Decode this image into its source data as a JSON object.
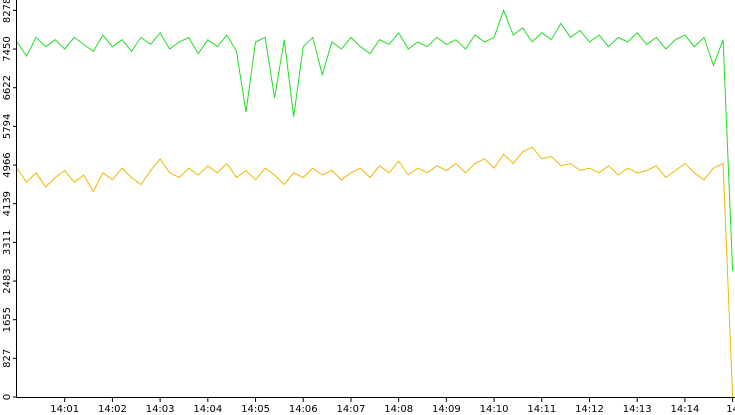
{
  "chart_data": {
    "type": "line",
    "x": [
      0,
      0.2,
      0.4,
      0.6,
      0.8,
      1,
      1.2,
      1.4,
      1.6,
      1.8,
      2,
      2.2,
      2.4,
      2.6,
      2.8,
      3,
      3.2,
      3.4,
      3.6,
      3.8,
      4,
      4.2,
      4.4,
      4.6,
      4.8,
      5,
      5.2,
      5.4,
      5.6,
      5.8,
      6,
      6.2,
      6.4,
      6.6,
      6.8,
      7,
      7.2,
      7.4,
      7.6,
      7.8,
      8,
      8.2,
      8.4,
      8.6,
      8.8,
      9,
      9.2,
      9.4,
      9.6,
      9.8,
      10,
      10.2,
      10.4,
      10.6,
      10.8,
      11,
      11.2,
      11.4,
      11.6,
      11.8,
      12,
      12.2,
      12.4,
      12.6,
      12.8,
      13,
      13.2,
      13.4,
      13.6,
      13.8,
      14,
      14.2,
      14.4,
      14.6,
      14.8,
      15
    ],
    "series": [
      {
        "color": "#22dd22",
        "values": [
          7600,
          7300,
          7700,
          7500,
          7650,
          7450,
          7700,
          7550,
          7400,
          7750,
          7500,
          7650,
          7400,
          7700,
          7550,
          7800,
          7450,
          7600,
          7700,
          7350,
          7650,
          7500,
          7750,
          7400,
          6100,
          7600,
          7700,
          6400,
          7650,
          6000,
          7500,
          7700,
          6900,
          7600,
          7450,
          7700,
          7500,
          7350,
          7650,
          7550,
          7800,
          7450,
          7600,
          7500,
          7700,
          7550,
          7650,
          7450,
          7750,
          7600,
          7700,
          8278,
          7750,
          7900,
          7600,
          7800,
          7650,
          8000,
          7700,
          7850,
          7600,
          7750,
          7500,
          7700,
          7600,
          7800,
          7550,
          7700,
          7450,
          7650,
          7750,
          7500,
          7700,
          7100,
          7650,
          2700
        ]
      },
      {
        "color": "#f0b800",
        "values": [
          4900,
          4600,
          4800,
          4500,
          4700,
          4850,
          4600,
          4750,
          4400,
          4800,
          4650,
          4900,
          4700,
          4550,
          4850,
          5100,
          4800,
          4700,
          4900,
          4750,
          4950,
          4800,
          5000,
          4700,
          4850,
          4650,
          4900,
          4750,
          4550,
          4800,
          4700,
          4900,
          4750,
          4850,
          4650,
          4800,
          4900,
          4700,
          4950,
          4800,
          5050,
          4750,
          4900,
          4800,
          4950,
          4850,
          5000,
          4800,
          5000,
          5100,
          4900,
          5200,
          5000,
          5250,
          5350,
          5100,
          5150,
          4950,
          5000,
          4850,
          4900,
          4800,
          4950,
          4750,
          4900,
          4800,
          4850,
          4950,
          4700,
          4850,
          5000,
          4800,
          4650,
          4900,
          5000,
          0
        ]
      }
    ],
    "xlim": [
      0,
      15.05
    ],
    "xticks": [
      {
        "value": 1,
        "label": "14:01"
      },
      {
        "value": 2,
        "label": "14:02"
      },
      {
        "value": 3,
        "label": "14:03"
      },
      {
        "value": 4,
        "label": "14:04"
      },
      {
        "value": 5,
        "label": "14:05"
      },
      {
        "value": 6,
        "label": "14:06"
      },
      {
        "value": 7,
        "label": "14:07"
      },
      {
        "value": 8,
        "label": "14:08"
      },
      {
        "value": 9,
        "label": "14:09"
      },
      {
        "value": 10,
        "label": "14:10"
      },
      {
        "value": 11,
        "label": "14:11"
      },
      {
        "value": 12,
        "label": "14:12"
      },
      {
        "value": 13,
        "label": "14:13"
      },
      {
        "value": 14,
        "label": "14:14"
      },
      {
        "value": 15,
        "label": "14"
      }
    ],
    "ylim": [
      0,
      8500
    ],
    "yticks": [
      0,
      827,
      1655,
      2483,
      3311,
      4139,
      4966,
      5794,
      6622,
      7450,
      8278
    ]
  }
}
